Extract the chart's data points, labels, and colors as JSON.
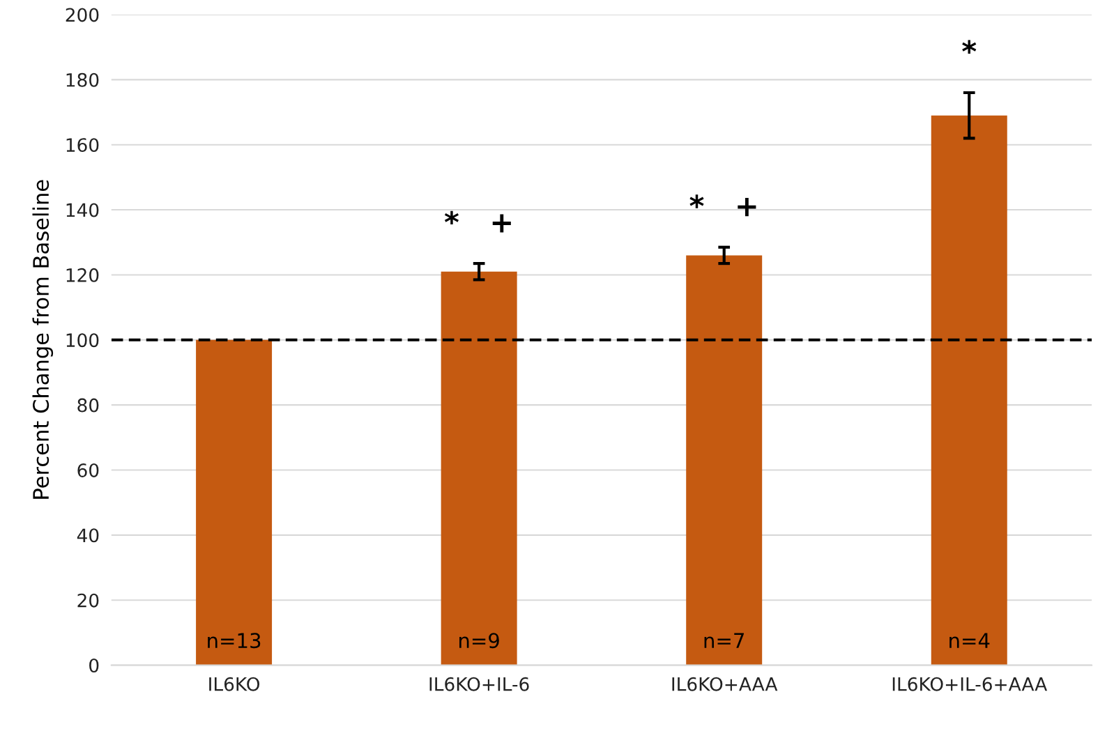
{
  "chart_data": {
    "type": "bar",
    "ylabel": "Percent Change from Baseline",
    "categories": [
      "IL6KO",
      "IL6KO+IL-6",
      "IL6KO+AAA",
      "IL6KO+IL-6+AAA"
    ],
    "values": [
      100,
      121,
      126,
      169
    ],
    "errors": [
      null,
      2.5,
      2.5,
      7
    ],
    "color": "#c55a11",
    "ylim": [
      0,
      200
    ],
    "yticks": [
      0,
      20,
      40,
      60,
      80,
      100,
      120,
      140,
      160,
      180,
      200
    ],
    "grid": "y",
    "ref_lines": [
      {
        "axis": "y",
        "value": 100,
        "color": "#000000",
        "line_style": "dashed"
      }
    ],
    "annotations": [
      "n=13",
      "n=9",
      "n=7",
      "n=4",
      "*   +",
      "*   +",
      "*"
    ]
  }
}
